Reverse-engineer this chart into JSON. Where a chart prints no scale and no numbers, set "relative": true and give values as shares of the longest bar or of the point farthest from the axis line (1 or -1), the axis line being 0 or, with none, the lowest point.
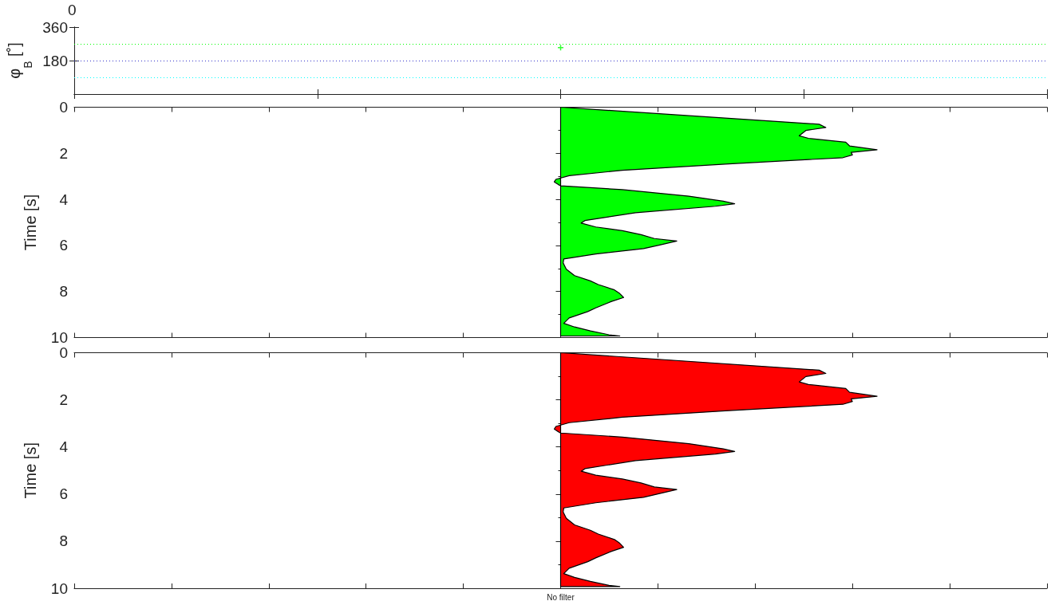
{
  "chart_data": [
    {
      "type": "scatter",
      "categories": [
        null
      ],
      "ylabel": "φ$_{B}$ [˚]",
      "ylim": [
        0,
        360
      ],
      "yticks": [
        180,
        360
      ],
      "tick_labels": "y",
      "marker": "cross",
      "annotations": [
        "0"
      ],
      "series": [
        {
          "color": "#00ff00",
          "values": [
            250
          ]
        }
      ],
      "ref_lines": [
        {
          "axis": "y",
          "value": 270,
          "color": "#00ff00",
          "line_style": "dotted"
        },
        {
          "axis": "y",
          "value": 180,
          "color": "#3333cc",
          "line_style": "dotted"
        },
        {
          "axis": "y",
          "value": 90,
          "color": "#00ffff",
          "line_style": "dotted"
        }
      ]
    },
    {
      "type": "area",
      "orientation": "horizontal",
      "relative": true,
      "ylabel": "Time [s]",
      "ylim": [
        10,
        0
      ],
      "yticks": [
        0,
        2,
        4,
        6,
        8,
        10
      ],
      "tick_labels": "y",
      "x": [
        0,
        0.74,
        0.88,
        1.01,
        1.24,
        1.35,
        1.52,
        1.68,
        1.85,
        1.96,
        2.07,
        2.19,
        2.46,
        2.74,
        2.97,
        3.13,
        3.24,
        3.36,
        3.41,
        3.58,
        3.86,
        4.08,
        4.19,
        4.3,
        4.58,
        4.92,
        5.03,
        5.2,
        5.36,
        5.53,
        5.7,
        5.81,
        5.98,
        6.14,
        6.37,
        6.59,
        6.76,
        7.03,
        7.31,
        7.54,
        7.7,
        7.93,
        8.09,
        8.26,
        8.43,
        8.71,
        8.87,
        9.15,
        9.38,
        9.54,
        9.71,
        9.88,
        9.93
      ],
      "series": [
        {
          "color": "#00ff00",
          "values": [
            0,
            0.817,
            0.838,
            0.775,
            0.754,
            0.783,
            0.901,
            0.913,
            1,
            0.918,
            0.922,
            0.892,
            0.531,
            0.195,
            0.027,
            -0.015,
            -0.02,
            -0.007,
            0,
            0.195,
            0.405,
            0.514,
            0.55,
            0.489,
            0.237,
            0.077,
            0.065,
            0.111,
            0.195,
            0.254,
            0.296,
            0.367,
            0.313,
            0.262,
            0.111,
            0.01,
            0.008,
            0.018,
            0.044,
            0.094,
            0.119,
            0.17,
            0.187,
            0.199,
            0.161,
            0.111,
            0.086,
            0.027,
            0.01,
            0.044,
            0.094,
            0.153,
            0.187
          ]
        }
      ]
    },
    {
      "type": "area",
      "orientation": "horizontal",
      "relative": true,
      "ylabel": "Time [s]",
      "xlabel": "No filter",
      "ylim": [
        10,
        0
      ],
      "yticks": [
        0,
        2,
        4,
        6,
        8,
        10
      ],
      "tick_labels": "y",
      "x": [
        0,
        0.74,
        0.88,
        1.01,
        1.24,
        1.35,
        1.52,
        1.68,
        1.85,
        1.96,
        2.07,
        2.19,
        2.46,
        2.74,
        2.97,
        3.13,
        3.24,
        3.36,
        3.41,
        3.58,
        3.86,
        4.08,
        4.19,
        4.3,
        4.58,
        4.92,
        5.03,
        5.2,
        5.36,
        5.53,
        5.7,
        5.81,
        5.98,
        6.14,
        6.37,
        6.59,
        6.76,
        7.03,
        7.31,
        7.54,
        7.7,
        7.93,
        8.09,
        8.26,
        8.43,
        8.71,
        8.87,
        9.15,
        9.38,
        9.54,
        9.71,
        9.88,
        9.93
      ],
      "series": [
        {
          "color": "#ff0000",
          "values": [
            0,
            0.817,
            0.838,
            0.775,
            0.754,
            0.783,
            0.901,
            0.913,
            1,
            0.918,
            0.922,
            0.892,
            0.531,
            0.195,
            0.027,
            -0.015,
            -0.02,
            -0.007,
            0,
            0.195,
            0.405,
            0.514,
            0.55,
            0.489,
            0.237,
            0.077,
            0.065,
            0.111,
            0.195,
            0.254,
            0.296,
            0.367,
            0.313,
            0.262,
            0.111,
            0.01,
            0.008,
            0.018,
            0.044,
            0.094,
            0.119,
            0.17,
            0.187,
            0.199,
            0.161,
            0.111,
            0.086,
            0.027,
            0.01,
            0.044,
            0.094,
            0.153,
            0.187
          ]
        }
      ]
    }
  ]
}
